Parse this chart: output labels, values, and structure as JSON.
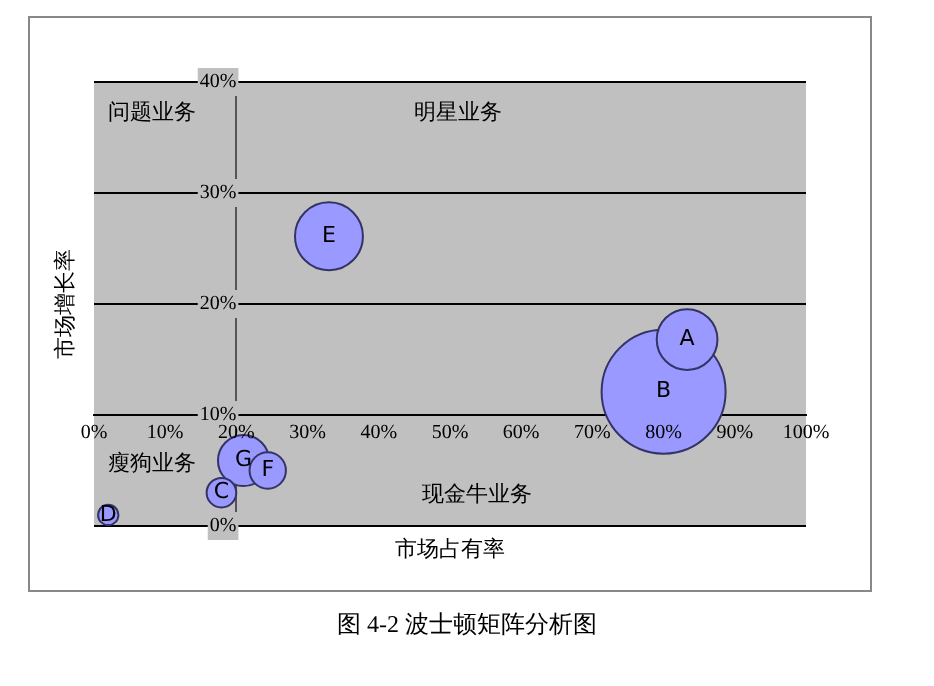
{
  "chart_data": {
    "type": "bubble",
    "xlabel": "市场占有率",
    "ylabel": "市场增长率",
    "xlim": [
      0,
      100
    ],
    "ylim": [
      0,
      40
    ],
    "xticks": [
      {
        "value": 0,
        "label": "0%"
      },
      {
        "value": 10,
        "label": "10%"
      },
      {
        "value": 20,
        "label": "20%"
      },
      {
        "value": 30,
        "label": "30%"
      },
      {
        "value": 40,
        "label": "40%"
      },
      {
        "value": 50,
        "label": "50%"
      },
      {
        "value": 60,
        "label": "60%"
      },
      {
        "value": 70,
        "label": "70%"
      },
      {
        "value": 80,
        "label": "80%"
      },
      {
        "value": 90,
        "label": "90%"
      },
      {
        "value": 100,
        "label": "100%"
      }
    ],
    "yticks": [
      {
        "value": 0,
        "label": "0%"
      },
      {
        "value": 10,
        "label": "10%"
      },
      {
        "value": 20,
        "label": "20%"
      },
      {
        "value": 30,
        "label": "30%"
      },
      {
        "value": 40,
        "label": "40%"
      }
    ],
    "grid": "y",
    "legend": false,
    "series": [
      {
        "name": "A",
        "color": "#9999ff",
        "x": [
          83.3
        ],
        "values": [
          16.8
        ],
        "sizes": [
          0.24
        ]
      },
      {
        "name": "B",
        "color": "#9999ff",
        "x": [
          80
        ],
        "values": [
          12.1
        ],
        "sizes": [
          1
        ]
      },
      {
        "name": "C",
        "color": "#9999ff",
        "x": [
          17.9
        ],
        "values": [
          3
        ],
        "sizes": [
          0.057
        ]
      },
      {
        "name": "D",
        "color": "#9999ff",
        "x": [
          2
        ],
        "values": [
          1
        ],
        "sizes": [
          0.027
        ]
      },
      {
        "name": "E",
        "color": "#9999ff",
        "x": [
          33
        ],
        "values": [
          26.1
        ],
        "sizes": [
          0.3
        ]
      },
      {
        "name": "F",
        "color": "#9999ff",
        "x": [
          24.4
        ],
        "values": [
          5
        ],
        "sizes": [
          0.086
        ]
      },
      {
        "name": "G",
        "color": "#9999ff",
        "x": [
          21
        ],
        "values": [
          5.9
        ],
        "sizes": [
          0.17
        ]
      }
    ],
    "annotations": [
      "问题业务",
      "明星业务",
      "瘦狗业务",
      "现金牛业务",
      "图 4-2    波士顿矩阵分析图"
    ]
  }
}
